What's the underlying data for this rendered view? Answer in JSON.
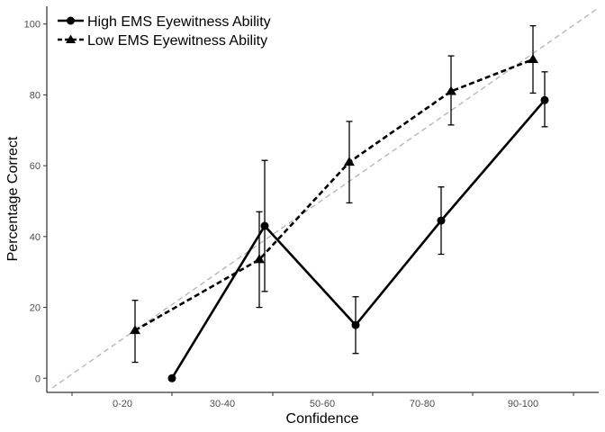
{
  "chart_data": {
    "type": "line",
    "title": "",
    "xlabel": "Confidence",
    "ylabel": "Percentage Correct",
    "categories": [
      "0-20",
      "30-40",
      "50-60",
      "70-80",
      "90-100"
    ],
    "ylim": [
      -4,
      105
    ],
    "yticks": [
      0,
      20,
      40,
      60,
      80,
      100
    ],
    "legend_position": "top-left",
    "grid": false,
    "reference_line": "diagonal dashed grey line (perfect calibration)",
    "series": [
      {
        "name": "High EMS Eyewitness Ability",
        "marker": "circle",
        "line_style": "solid",
        "color": "#000000",
        "points": [
          {
            "x": "0-20",
            "y": 0,
            "err_low": null,
            "err_high": null
          },
          {
            "x": "30-40",
            "y": 43,
            "err_low": 24.5,
            "err_high": 61.5
          },
          {
            "x": "50-60",
            "y": 15,
            "err_low": 7,
            "err_high": 23
          },
          {
            "x": "70-80",
            "y": 44.5,
            "err_low": 35,
            "err_high": 54
          },
          {
            "x": "90-100",
            "y": 78.5,
            "err_low": 71,
            "err_high": 86.5
          }
        ]
      },
      {
        "name": "Low EMS Eyewitness Ability",
        "marker": "triangle",
        "line_style": "dashed",
        "color": "#000000",
        "points": [
          {
            "x": "0-20",
            "y": 13.5,
            "err_low": 4.5,
            "err_high": 22
          },
          {
            "x": "30-40",
            "y": 33.5,
            "err_low": 20,
            "err_high": 47
          },
          {
            "x": "50-60",
            "y": 61,
            "err_low": 49.5,
            "err_high": 72.5
          },
          {
            "x": "70-80",
            "y": 81,
            "err_low": 71.5,
            "err_high": 91
          },
          {
            "x": "90-100",
            "y": 90,
            "err_low": 80.5,
            "err_high": 99.5
          }
        ]
      }
    ]
  }
}
